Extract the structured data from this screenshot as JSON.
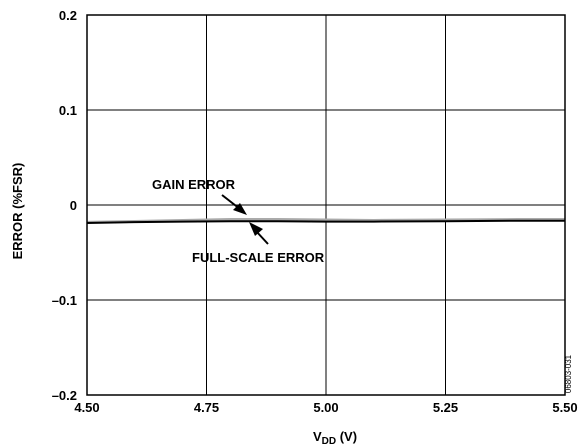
{
  "chart_data": {
    "type": "line",
    "xlabel_main": "V",
    "xlabel_sub": "DD",
    "xlabel_unit": " (V)",
    "ylabel": "ERROR (%FSR)",
    "xlim": [
      4.5,
      5.5
    ],
    "ylim": [
      -0.2,
      0.2
    ],
    "x_ticks": [
      4.5,
      4.75,
      5.0,
      5.25,
      5.5
    ],
    "x_tick_labels": [
      "4.50",
      "4.75",
      "5.00",
      "5.25",
      "5.50"
    ],
    "y_ticks": [
      -0.2,
      -0.1,
      0,
      0.1,
      0.2
    ],
    "y_tick_labels": [
      "–0.2",
      "–0.1",
      "0",
      "0.1",
      "0.2"
    ],
    "grid": true,
    "series": [
      {
        "name": "GAIN ERROR",
        "color": "#aaaaaa",
        "x": [
          4.5,
          4.6,
          4.7,
          4.8,
          4.85,
          4.9,
          5.0,
          5.1,
          5.25,
          5.4,
          5.5
        ],
        "y": [
          -0.018,
          -0.017,
          -0.016,
          -0.015,
          -0.015,
          -0.015,
          -0.0155,
          -0.016,
          -0.0155,
          -0.015,
          -0.015
        ]
      },
      {
        "name": "FULL-SCALE ERROR",
        "color": "#000000",
        "x": [
          4.5,
          4.6,
          4.7,
          4.8,
          4.85,
          4.9,
          5.0,
          5.1,
          5.25,
          5.4,
          5.5
        ],
        "y": [
          -0.019,
          -0.018,
          -0.0175,
          -0.017,
          -0.017,
          -0.017,
          -0.0175,
          -0.0175,
          -0.017,
          -0.0165,
          -0.0165
        ]
      }
    ],
    "annotations": [
      {
        "text": "GAIN ERROR"
      },
      {
        "text": "FULL-SCALE ERROR"
      }
    ],
    "figure_id": "06803-031"
  }
}
